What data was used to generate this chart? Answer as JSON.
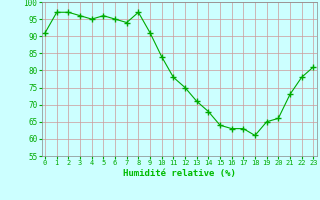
{
  "x": [
    0,
    1,
    2,
    3,
    4,
    5,
    6,
    7,
    8,
    9,
    10,
    11,
    12,
    13,
    14,
    15,
    16,
    17,
    18,
    19,
    20,
    21,
    22,
    23
  ],
  "y": [
    91,
    97,
    97,
    96,
    95,
    96,
    95,
    94,
    97,
    91,
    84,
    78,
    75,
    71,
    68,
    64,
    63,
    63,
    61,
    65,
    66,
    73,
    78,
    81
  ],
  "line_color": "#00aa00",
  "marker": "+",
  "marker_size": 4,
  "bg_color": "#ccffff",
  "grid_color": "#cc9999",
  "xlabel": "Humidité relative (%)",
  "xlabel_color": "#00bb00",
  "ylim": [
    55,
    100
  ],
  "yticks": [
    55,
    60,
    65,
    70,
    75,
    80,
    85,
    90,
    95,
    100
  ],
  "xticks": [
    0,
    1,
    2,
    3,
    4,
    5,
    6,
    7,
    8,
    9,
    10,
    11,
    12,
    13,
    14,
    15,
    16,
    17,
    18,
    19,
    20,
    21,
    22,
    23
  ],
  "tick_color": "#00aa00",
  "spine_color": "#888888"
}
